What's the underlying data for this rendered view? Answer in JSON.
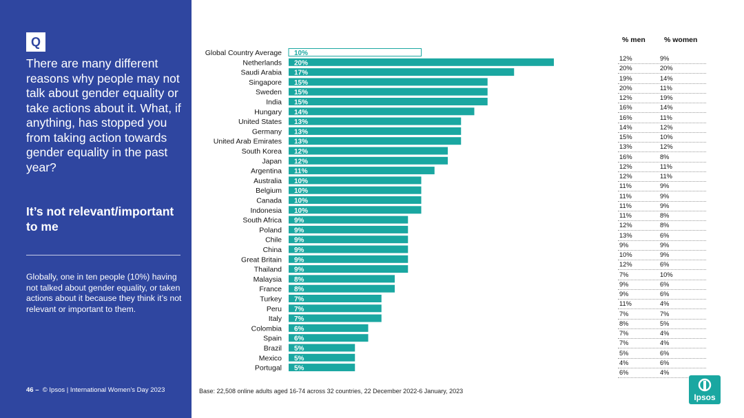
{
  "sidebar": {
    "q_label": "Q",
    "question": "There are many different reasons why people may not talk about gender equality or take actions about it.  What, if anything, has stopped you from taking action towards gender equality in the past year?",
    "highlight": "It’s not relevant/important to me",
    "summary": "Globally, one in ten people (10%) having not talked about gender equality, or taken actions about it because they think it’s not relevant or important to them.",
    "footer_page": "46 –",
    "footer_text": "© Ipsos | International Women’s Day 2023"
  },
  "base_note": "Base: 22,508 online adults aged 16-74 across 32 countries, 22 December 2022-6 January, 2023",
  "logo_text": "Ipsos",
  "colors": {
    "bar": "#1aa7a1",
    "panel": "#2f46a0"
  },
  "table": {
    "header_men": "% men",
    "header_women": "% women",
    "rows": [
      {
        "men": "12%",
        "women": "9%"
      },
      {
        "men": "20%",
        "women": "20%"
      },
      {
        "men": "19%",
        "women": "14%"
      },
      {
        "men": "20%",
        "women": "11%"
      },
      {
        "men": "12%",
        "women": "19%"
      },
      {
        "men": "16%",
        "women": "14%"
      },
      {
        "men": "16%",
        "women": "11%"
      },
      {
        "men": "14%",
        "women": "12%"
      },
      {
        "men": "15%",
        "women": "10%"
      },
      {
        "men": "13%",
        "women": "12%"
      },
      {
        "men": "16%",
        "women": "8%"
      },
      {
        "men": "12%",
        "women": "11%"
      },
      {
        "men": "12%",
        "women": "11%"
      },
      {
        "men": "11%",
        "women": "9%"
      },
      {
        "men": "11%",
        "women": "9%"
      },
      {
        "men": "11%",
        "women": "9%"
      },
      {
        "men": "11%",
        "women": "8%"
      },
      {
        "men": "12%",
        "women": "8%"
      },
      {
        "men": "13%",
        "women": "6%"
      },
      {
        "men": "9%",
        "women": "9%"
      },
      {
        "men": "10%",
        "women": "9%"
      },
      {
        "men": "12%",
        "women": "6%"
      },
      {
        "men": "7%",
        "women": "10%"
      },
      {
        "men": "9%",
        "women": "6%"
      },
      {
        "men": "9%",
        "women": "6%"
      },
      {
        "men": "11%",
        "women": "4%"
      },
      {
        "men": "7%",
        "women": "7%"
      },
      {
        "men": "8%",
        "women": "5%"
      },
      {
        "men": "7%",
        "women": "4%"
      },
      {
        "men": "7%",
        "women": "4%"
      },
      {
        "men": "5%",
        "women": "6%"
      },
      {
        "men": "4%",
        "women": "6%"
      },
      {
        "men": "6%",
        "women": "4%"
      }
    ]
  },
  "chart_data": {
    "type": "bar",
    "orientation": "horizontal",
    "title": "It’s not relevant/important to me",
    "categories": [
      "Global Country Average",
      "Netherlands",
      "Saudi Arabia",
      "Singapore",
      "Sweden",
      "India",
      "Hungary",
      "United States",
      "Germany",
      "United Arab Emirates",
      "South Korea",
      "Japan",
      "Argentina",
      "Australia",
      "Belgium",
      "Canada",
      "Indonesia",
      "South Africa",
      "Poland",
      "Chile",
      "China",
      "Great Britain",
      "Thailand",
      "Malaysia",
      "France",
      "Turkey",
      "Peru",
      "Italy",
      "Colombia",
      "Spain",
      "Brazil",
      "Mexico",
      "Portugal"
    ],
    "values": [
      10,
      20,
      17,
      15,
      15,
      15,
      14,
      13,
      13,
      13,
      12,
      12,
      11,
      10,
      10,
      10,
      10,
      9,
      9,
      9,
      9,
      9,
      9,
      8,
      8,
      7,
      7,
      7,
      6,
      6,
      5,
      5,
      5
    ],
    "labels": [
      "10%",
      "20%",
      "17%",
      "15%",
      "15%",
      "15%",
      "14%",
      "13%",
      "13%",
      "13%",
      "12%",
      "12%",
      "11%",
      "10%",
      "10%",
      "10%",
      "10%",
      "9%",
      "9%",
      "9%",
      "9%",
      "9%",
      "9%",
      "8%",
      "8%",
      "7%",
      "7%",
      "7%",
      "6%",
      "6%",
      "5%",
      "5%",
      "5%"
    ],
    "outlined_category": "Global Country Average",
    "xlim": [
      0,
      20
    ],
    "ylabel": "",
    "xlabel": ""
  }
}
